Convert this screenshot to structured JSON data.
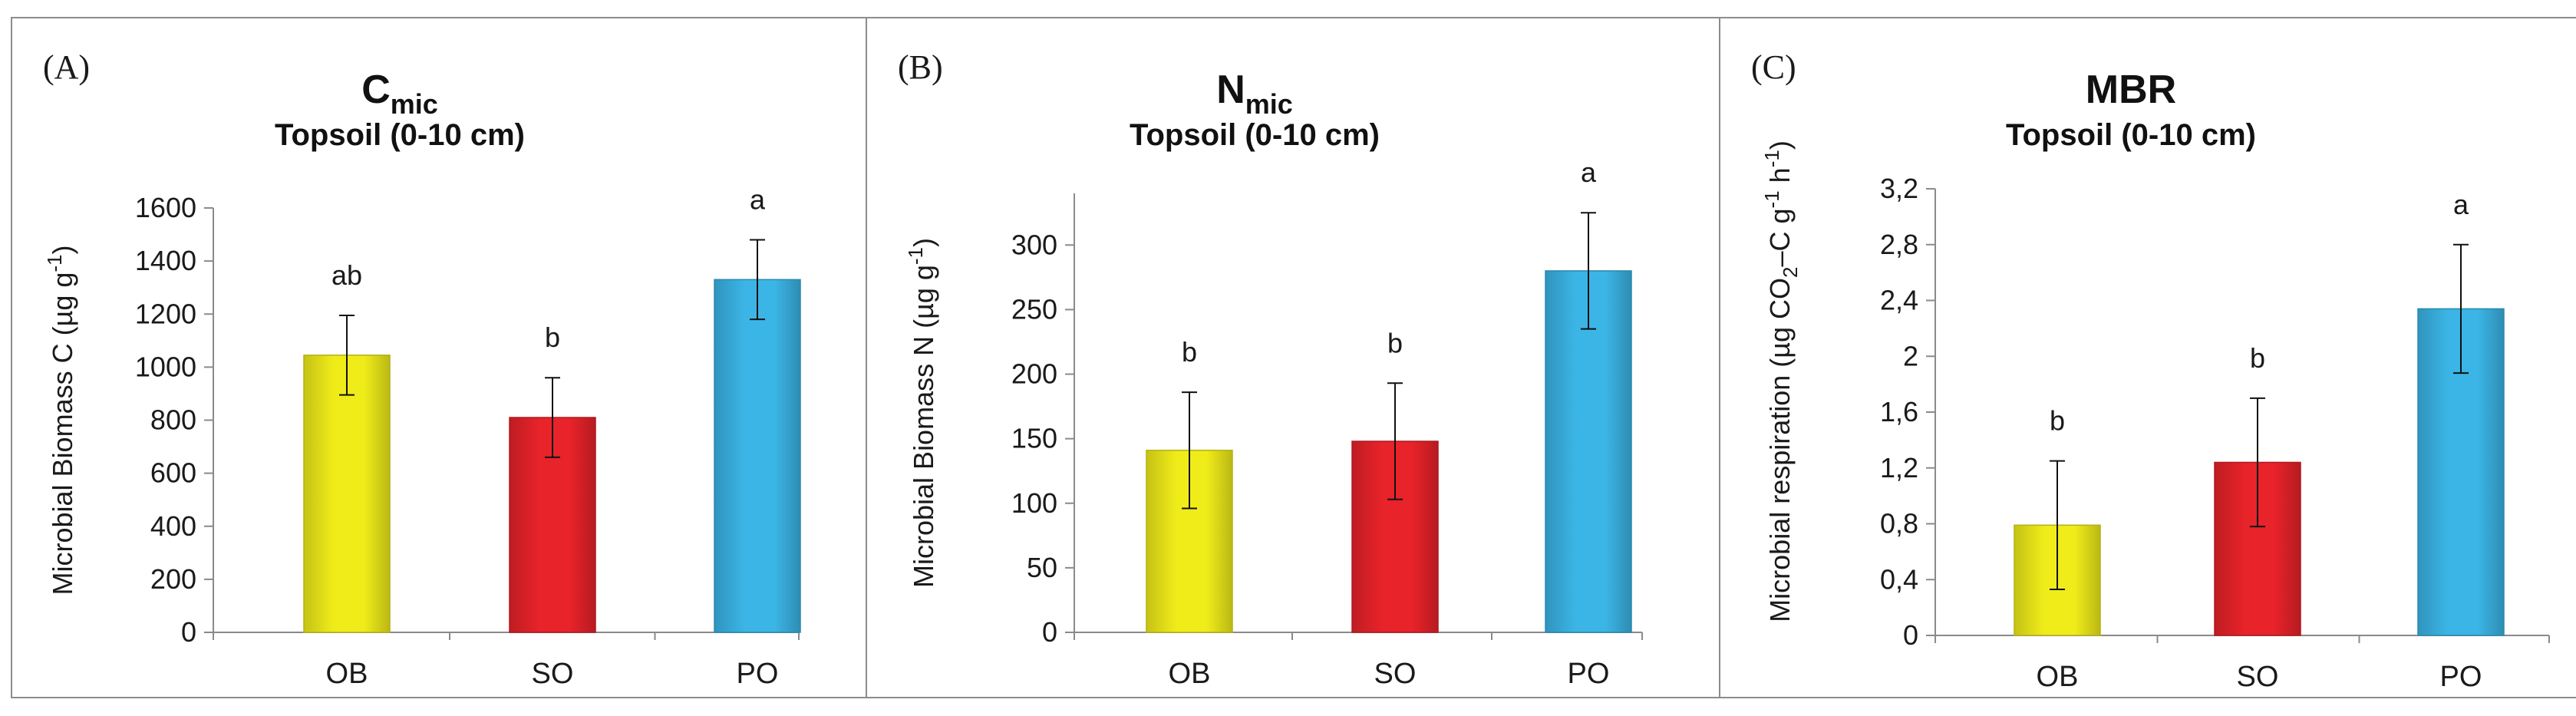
{
  "chart_data": [
    {
      "type": "bar",
      "panel": "(A)",
      "title": "C",
      "title_sub": "mic",
      "subtitle": "Topsoil (0-10 cm)",
      "ylabel": "Microbial Biomass C (µg g",
      "ylabel_sup": "-1",
      "ylabel_end": ")",
      "categories": [
        "OB",
        "SO",
        "PO"
      ],
      "values": [
        1045,
        810,
        1330
      ],
      "errors": [
        150,
        150,
        150
      ],
      "significance": [
        "ab",
        "b",
        "a"
      ],
      "colors": [
        "#f0ec1a",
        "#e8232a",
        "#3bb5e6"
      ],
      "ylim": [
        0,
        1600
      ],
      "yticks": [
        "0",
        "200",
        "400",
        "600",
        "800",
        "1000",
        "1200",
        "1400",
        "1600"
      ]
    },
    {
      "type": "bar",
      "panel": "(B)",
      "title": "N",
      "title_sub": "mic",
      "subtitle": "Topsoil (0-10 cm)",
      "ylabel": "Microbial Biomass N (µg g",
      "ylabel_sup": "-1",
      "ylabel_end": ")",
      "categories": [
        "OB",
        "SO",
        "PO"
      ],
      "values": [
        141,
        148,
        280
      ],
      "errors": [
        45,
        45,
        45
      ],
      "significance": [
        "b",
        "b",
        "a"
      ],
      "colors": [
        "#f0ec1a",
        "#e8232a",
        "#3bb5e6"
      ],
      "ylim": [
        0,
        340
      ],
      "yticks": [
        "0",
        "50",
        "100",
        "150",
        "200",
        "250",
        "300"
      ]
    },
    {
      "type": "bar",
      "panel": "(C)",
      "title": "MBR",
      "title_sub": "",
      "subtitle": "Topsoil (0-10 cm)",
      "ylabel": "Microbial respiration (µg CO",
      "ylabel_parts": [
        "2",
        "–C g",
        "-1",
        " h",
        "-1",
        ")"
      ],
      "categories": [
        "OB",
        "SO",
        "PO"
      ],
      "values": [
        0.79,
        1.24,
        2.34
      ],
      "errors": [
        0.46,
        0.46,
        0.46
      ],
      "significance": [
        "b",
        "b",
        "a"
      ],
      "colors": [
        "#f0ec1a",
        "#e8232a",
        "#3bb5e6"
      ],
      "ylim": [
        0,
        3.2
      ],
      "yticks": [
        "0",
        "0,4",
        "0,8",
        "1,2",
        "1,6",
        "2",
        "2,4",
        "2,8",
        "3,2"
      ]
    }
  ]
}
